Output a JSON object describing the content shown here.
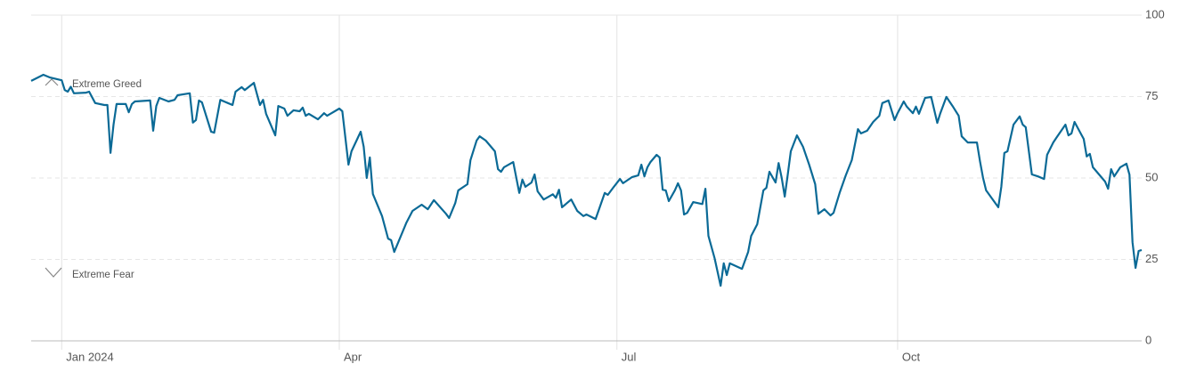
{
  "chart_data": {
    "type": "line",
    "annotations": [
      "Extreme Greed",
      "Extreme Fear"
    ],
    "x": [
      -10,
      -6,
      -4,
      0,
      1,
      2,
      3,
      4,
      8,
      9,
      11,
      14,
      15,
      16,
      17,
      18,
      21,
      22,
      23,
      24,
      29,
      30,
      31,
      32,
      35,
      37,
      38,
      42,
      43,
      44,
      45,
      46,
      49,
      50,
      52,
      56,
      57,
      59,
      60,
      63,
      65,
      66,
      67,
      70,
      71,
      73,
      74,
      76,
      78,
      79,
      80,
      81,
      84,
      86,
      87,
      91,
      92,
      94,
      95,
      98,
      99,
      100,
      101,
      102,
      105,
      107,
      108,
      109,
      113,
      115,
      118,
      120,
      122,
      126,
      127,
      129,
      130,
      133,
      134,
      136,
      137,
      139,
      142,
      143,
      144,
      145,
      148,
      150,
      151,
      152,
      154,
      155,
      156,
      158,
      161,
      162,
      163,
      164,
      167,
      169,
      171,
      172,
      175,
      178,
      179,
      181,
      183,
      184,
      187,
      189,
      190,
      191,
      192,
      193,
      195,
      196,
      197,
      198,
      199,
      201,
      202,
      203,
      204,
      205,
      207,
      210,
      211,
      212,
      214,
      216,
      217,
      218,
      219,
      223,
      225,
      226,
      228,
      230,
      231,
      232,
      234,
      235,
      236,
      237,
      238,
      239,
      241,
      243,
      245,
      247,
      248,
      250,
      252,
      253,
      255,
      257,
      259,
      261,
      262,
      264,
      266,
      268,
      269,
      271,
      273,
      274,
      276,
      277,
      279,
      280,
      281,
      283,
      285,
      287,
      288,
      290,
      292,
      294,
      295,
      297,
      300,
      301,
      302,
      303,
      307,
      308,
      309,
      310,
      311,
      312,
      314,
      315,
      316,
      318,
      320,
      322,
      323,
      325,
      326,
      329,
      330,
      331,
      332,
      334,
      335,
      336,
      337,
      338,
      342,
      343,
      344,
      345,
      347,
      349,
      350,
      351,
      352,
      353,
      354
    ],
    "values": [
      79.8,
      81.7,
      80.9,
      80,
      77,
      76.5,
      78,
      76,
      76.2,
      76.5,
      73,
      72.4,
      72.4,
      57.7,
      66.4,
      72.7,
      72.7,
      70.2,
      72.7,
      73.5,
      73.8,
      64.5,
      72.1,
      74.6,
      73.5,
      74,
      75.4,
      76,
      67,
      67.8,
      73.8,
      73.2,
      64.2,
      63.9,
      74,
      72.4,
      76.5,
      77.9,
      77,
      79.2,
      72.4,
      74,
      69.7,
      63.1,
      72.1,
      71.3,
      69.1,
      70.8,
      70.5,
      71.6,
      69.1,
      69.7,
      68,
      69.9,
      69.1,
      71.3,
      70.5,
      54.1,
      58.2,
      64.2,
      59.6,
      50,
      56.3,
      45.1,
      38.3,
      31.4,
      30.9,
      27.3,
      36.3,
      39.9,
      41.8,
      40.4,
      43.2,
      39,
      37.7,
      42.3,
      46.2,
      48.1,
      55.5,
      61.5,
      62.8,
      61.5,
      58.2,
      52.7,
      51.9,
      53.3,
      54.9,
      45.4,
      49.5,
      47.3,
      48.6,
      51.1,
      45.9,
      43.4,
      45,
      43.9,
      46.4,
      41,
      43.4,
      39.9,
      38.3,
      38.8,
      37.4,
      45.4,
      44.8,
      47.3,
      49.7,
      48.4,
      50.3,
      50.8,
      54.1,
      50.5,
      53.3,
      54.9,
      57.1,
      56.3,
      46.4,
      46.2,
      42.9,
      46.2,
      48.4,
      46.2,
      38.8,
      39.3,
      42.6,
      42,
      46.7,
      32.2,
      25.4,
      16.9,
      23.8,
      20.2,
      23.8,
      22.1,
      27.3,
      32.2,
      35.8,
      46.2,
      47,
      51.9,
      48.6,
      54.6,
      50,
      44.3,
      51.1,
      58.2,
      63.1,
      59.6,
      54.1,
      48.1,
      39,
      40.4,
      38.5,
      39.3,
      45.4,
      50.8,
      55.5,
      65,
      63.7,
      64.5,
      67.2,
      69.1,
      73,
      73.8,
      67.8,
      69.9,
      73.5,
      71.9,
      69.9,
      71.9,
      69.7,
      74.6,
      74.9,
      66.9,
      69.9,
      74.9,
      72.1,
      69.1,
      62.8,
      60.9,
      60.9,
      55.2,
      50,
      46.2,
      41,
      47.3,
      57.7,
      58.2,
      62.3,
      66.4,
      68.9,
      66.4,
      65.6,
      51.1,
      50.5,
      49.7,
      57.1,
      60.9,
      62.3,
      66.4,
      63.1,
      63.7,
      67.2,
      63.7,
      62,
      56.6,
      57.4,
      53.3,
      48.9,
      46.7,
      52.7,
      50.5,
      53.3,
      54.4,
      51,
      30.3,
      22.4,
      27.6,
      27.9
    ],
    "color": "#0b6a96",
    "xlim": [
      -10,
      354
    ],
    "xticks": [
      {
        "value": 0,
        "label": "Jan 2024"
      },
      {
        "value": 91,
        "label": "Apr"
      },
      {
        "value": 182,
        "label": "Jul"
      },
      {
        "value": 274,
        "label": "Oct"
      }
    ],
    "ylim": [
      0,
      100
    ],
    "yticks": [
      0,
      25,
      50,
      75,
      100
    ],
    "grid": true
  }
}
